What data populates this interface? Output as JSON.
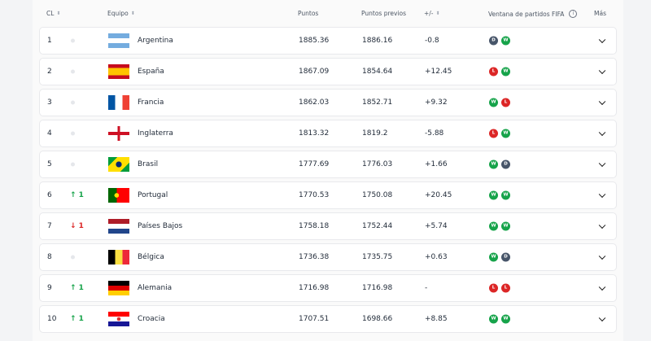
{
  "header": {
    "cl": "CL",
    "team": "Equipo",
    "points": "Puntos",
    "prev": "Puntos previos",
    "diff": "+/-",
    "window": "Ventana de partidos FIFA",
    "more": "Más"
  },
  "colors": {
    "win": "#16a34a",
    "loss": "#dc2626",
    "draw": "#475569",
    "up": "#16a34a",
    "down": "#dc2626"
  },
  "rows": [
    {
      "rank": "1",
      "move": "",
      "dir": "same",
      "team": "Argentina",
      "flag": "argentina",
      "points": "1885.36",
      "prev": "1886.16",
      "diff": "-0.8",
      "results": [
        "D",
        "W"
      ]
    },
    {
      "rank": "2",
      "move": "",
      "dir": "same",
      "team": "España",
      "flag": "spain",
      "points": "1867.09",
      "prev": "1854.64",
      "diff": "+12.45",
      "results": [
        "L",
        "W"
      ]
    },
    {
      "rank": "3",
      "move": "",
      "dir": "same",
      "team": "Francia",
      "flag": "france",
      "points": "1862.03",
      "prev": "1852.71",
      "diff": "+9.32",
      "results": [
        "W",
        "L"
      ]
    },
    {
      "rank": "4",
      "move": "",
      "dir": "same",
      "team": "Inglaterra",
      "flag": "england",
      "points": "1813.32",
      "prev": "1819.2",
      "diff": "-5.88",
      "results": [
        "L",
        "W"
      ]
    },
    {
      "rank": "5",
      "move": "",
      "dir": "same",
      "team": "Brasil",
      "flag": "brazil",
      "points": "1777.69",
      "prev": "1776.03",
      "diff": "+1.66",
      "results": [
        "W",
        "D"
      ]
    },
    {
      "rank": "6",
      "move": "↑ 1",
      "dir": "up",
      "team": "Portugal",
      "flag": "portugal",
      "points": "1770.53",
      "prev": "1750.08",
      "diff": "+20.45",
      "results": [
        "W",
        "W"
      ]
    },
    {
      "rank": "7",
      "move": "↓ 1",
      "dir": "down",
      "team": "Países Bajos",
      "flag": "netherlands",
      "points": "1758.18",
      "prev": "1752.44",
      "diff": "+5.74",
      "results": [
        "W",
        "W"
      ]
    },
    {
      "rank": "8",
      "move": "",
      "dir": "same",
      "team": "Bélgica",
      "flag": "belgium",
      "points": "1736.38",
      "prev": "1735.75",
      "diff": "+0.63",
      "results": [
        "W",
        "D"
      ]
    },
    {
      "rank": "9",
      "move": "↑ 1",
      "dir": "up",
      "team": "Alemania",
      "flag": "germany",
      "points": "1716.98",
      "prev": "1716.98",
      "diff": "-",
      "results": [
        "L",
        "L"
      ]
    },
    {
      "rank": "10",
      "move": "↑ 1",
      "dir": "up",
      "team": "Croacia",
      "flag": "croatia",
      "points": "1707.51",
      "prev": "1698.66",
      "diff": "+8.85",
      "results": [
        "W",
        "W"
      ]
    }
  ]
}
